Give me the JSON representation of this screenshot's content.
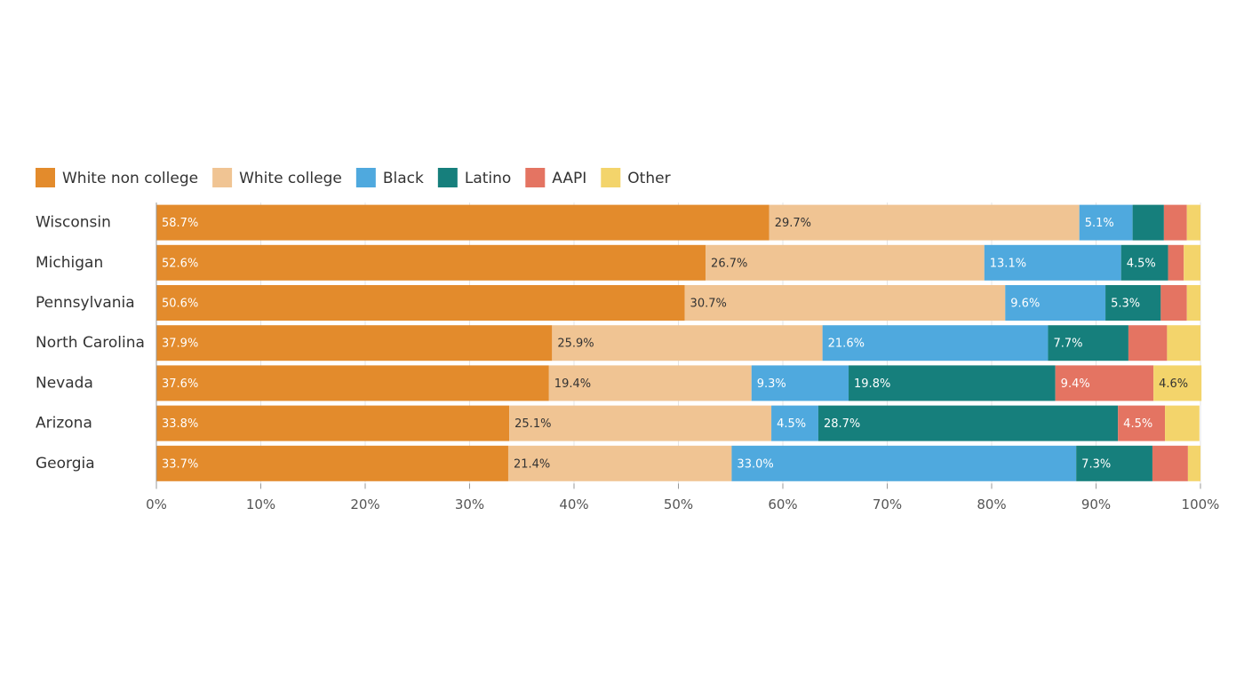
{
  "chart_data": {
    "type": "stacked-bar-horizontal",
    "categories": [
      "Wisconsin",
      "Michigan",
      "Pennsylvania",
      "North Carolina",
      "Nevada",
      "Arizona",
      "Georgia"
    ],
    "series": [
      {
        "name": "White non college",
        "color": "#e38b2c",
        "values": [
          58.7,
          52.6,
          50.6,
          37.9,
          37.6,
          33.8,
          33.7
        ],
        "value_labels": [
          "58.7%",
          "52.6%",
          "50.6%",
          "37.9%",
          "37.6%",
          "33.8%",
          "33.7%"
        ]
      },
      {
        "name": "White college",
        "color": "#f0c493",
        "values": [
          29.7,
          26.7,
          30.7,
          25.9,
          19.4,
          25.1,
          21.4
        ],
        "value_labels": [
          "29.7%",
          "26.7%",
          "30.7%",
          "25.9%",
          "19.4%",
          "25.1%",
          "21.4%"
        ]
      },
      {
        "name": "Black",
        "color": "#4fa9de",
        "values": [
          5.1,
          13.1,
          9.6,
          21.6,
          9.3,
          4.5,
          33.0
        ],
        "value_labels": [
          "5.1%",
          "13.1%",
          "9.6%",
          "21.6%",
          "9.3%",
          "4.5%",
          "33.0%"
        ]
      },
      {
        "name": "Latino",
        "color": "#167f7c",
        "values": [
          3.0,
          4.5,
          5.3,
          7.7,
          19.8,
          28.7,
          7.3
        ],
        "value_labels": [
          null,
          "4.5%",
          "5.3%",
          "7.7%",
          "19.8%",
          "28.7%",
          "7.3%"
        ]
      },
      {
        "name": "AAPI",
        "color": "#e47462",
        "values": [
          2.2,
          1.5,
          2.5,
          3.7,
          9.4,
          4.5,
          3.4
        ],
        "value_labels": [
          null,
          null,
          null,
          null,
          "9.4%",
          "4.5%",
          null
        ]
      },
      {
        "name": "Other",
        "color": "#f3d46b",
        "values": [
          1.3,
          1.6,
          1.3,
          3.2,
          4.6,
          3.3,
          1.2
        ],
        "value_labels": [
          null,
          null,
          null,
          null,
          "4.6%",
          null,
          null
        ]
      }
    ],
    "xlim": [
      0,
      100
    ],
    "xticks": [
      {
        "value": 0,
        "label": "0%"
      },
      {
        "value": 10,
        "label": "10%"
      },
      {
        "value": 20,
        "label": "20%"
      },
      {
        "value": 30,
        "label": "30%"
      },
      {
        "value": 40,
        "label": "40%"
      },
      {
        "value": 50,
        "label": "50%"
      },
      {
        "value": 60,
        "label": "60%"
      },
      {
        "value": 70,
        "label": "70%"
      },
      {
        "value": 80,
        "label": "80%"
      },
      {
        "value": 90,
        "label": "90%"
      },
      {
        "value": 100,
        "label": "100%"
      }
    ],
    "grid": true
  }
}
